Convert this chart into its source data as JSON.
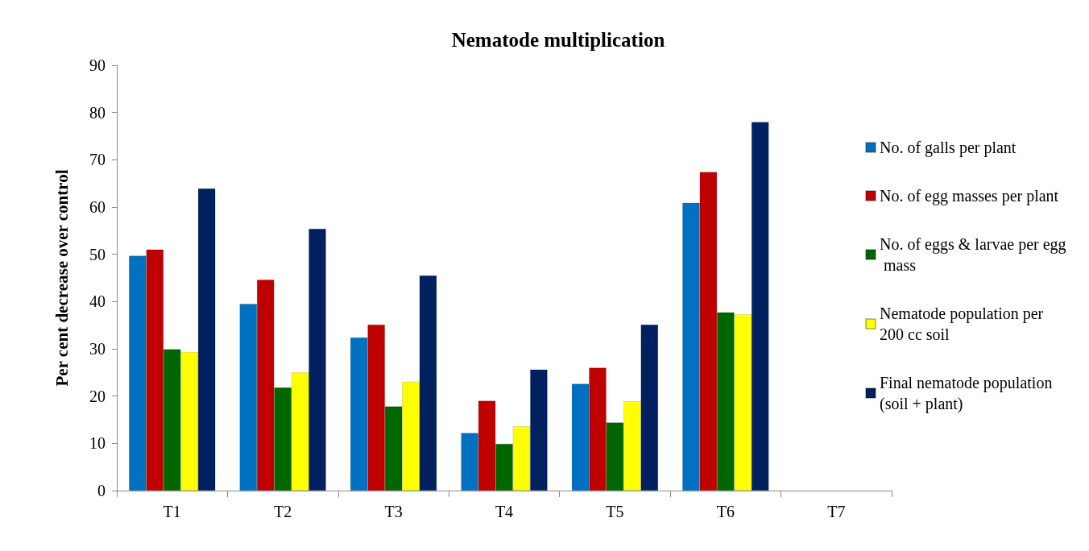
{
  "chart_data": {
    "type": "bar",
    "title": "Nematode multiplication",
    "ylabel": "Per cent decrease over control",
    "categories": [
      "T1",
      "T2",
      "T3",
      "T4",
      "T5",
      "T6",
      "T7"
    ],
    "series": [
      {
        "name": "No. of galls per plant",
        "color": "#0070c0",
        "values": [
          49.7,
          39.5,
          32.4,
          12.2,
          22.6,
          60.9,
          null
        ]
      },
      {
        "name": "No. of egg masses per plant",
        "color": "#c00000",
        "values": [
          51.0,
          44.6,
          35.1,
          19.0,
          26.0,
          67.4,
          null
        ]
      },
      {
        "name": "No. of eggs & larvae per egg mass",
        "color": "#006600",
        "values": [
          29.9,
          21.8,
          17.8,
          9.9,
          14.4,
          37.7,
          null
        ]
      },
      {
        "name": "Nematode population per 200 cc soil",
        "color": "#ffff00",
        "values": [
          29.3,
          25.0,
          23.0,
          13.6,
          18.9,
          37.3,
          null
        ]
      },
      {
        "name": "Final nematode population (soil + plant)",
        "color": "#002060",
        "values": [
          63.9,
          55.4,
          45.5,
          25.6,
          35.1,
          78.0,
          null
        ]
      }
    ],
    "ylim": [
      0,
      90
    ],
    "yticks": [
      0,
      10,
      20,
      30,
      40,
      50,
      60,
      70,
      80,
      90
    ],
    "grid": false,
    "legend": "right"
  }
}
